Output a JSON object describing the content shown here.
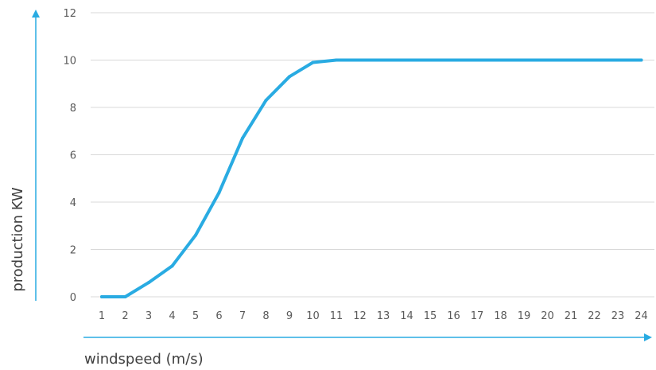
{
  "chart_data": {
    "type": "line",
    "xlabel": "windspeed (m/s)",
    "ylabel": "production KW",
    "x": [
      1,
      2,
      3,
      4,
      5,
      6,
      7,
      8,
      9,
      10,
      11,
      12,
      13,
      14,
      15,
      16,
      17,
      18,
      19,
      20,
      21,
      22,
      23,
      24
    ],
    "series": [
      {
        "values": [
          0,
          0,
          0.6,
          1.3,
          2.6,
          4.4,
          6.7,
          8.3,
          9.3,
          9.9,
          10,
          10,
          10,
          10,
          10,
          10,
          10,
          10,
          10,
          10,
          10,
          10,
          10,
          10
        ]
      }
    ],
    "yticks": [
      "0",
      "2",
      "4",
      "6",
      "8",
      "10",
      "12"
    ],
    "xticks": [
      "1",
      "2",
      "3",
      "4",
      "5",
      "6",
      "7",
      "8",
      "9",
      "10",
      "11",
      "12",
      "13",
      "14",
      "15",
      "16",
      "17",
      "18",
      "19",
      "20",
      "21",
      "22",
      "23",
      "24"
    ],
    "ylim": [
      0,
      12
    ],
    "grid": true,
    "legend": "none",
    "colors": {
      "line": "#29abe2",
      "axis_arrow": "#29abe2",
      "grid": "#d9d9d9",
      "tick_text": "#595959",
      "axis_title": "#404040"
    }
  }
}
